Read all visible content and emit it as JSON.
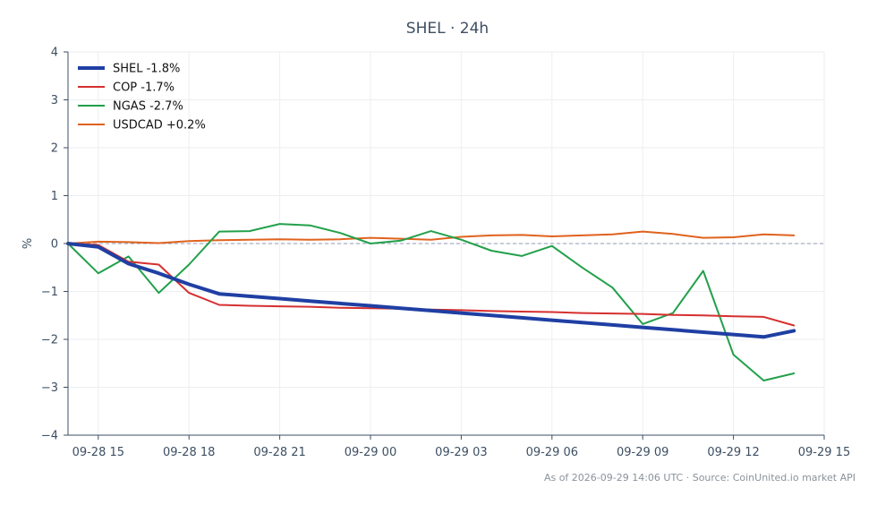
{
  "chart_data": {
    "type": "line",
    "title": "SHEL · 24h",
    "xlabel": "",
    "ylabel": "%",
    "ylim": [
      -4,
      4
    ],
    "yticks": [
      "4",
      "3",
      "2",
      "1",
      "0",
      "−1",
      "−2",
      "−3",
      "−4"
    ],
    "xlim": [
      "09-28 14:00",
      "09-29 15:00"
    ],
    "xticks": [
      "09-28 15",
      "09-28 18",
      "09-28 21",
      "09-29 00",
      "09-29 03",
      "09-29 06",
      "09-29 09",
      "09-29 12",
      "09-29 15"
    ],
    "grid": true,
    "zero_line": true,
    "legend_position": "top-left",
    "x": [
      "09-28 14:00",
      "09-28 15:00",
      "09-28 16:00",
      "09-28 17:00",
      "09-28 18:00",
      "09-28 19:00",
      "09-28 20:00",
      "09-28 21:00",
      "09-28 22:00",
      "09-28 23:00",
      "09-29 00:00",
      "09-29 01:00",
      "09-29 02:00",
      "09-29 03:00",
      "09-29 04:00",
      "09-29 05:00",
      "09-29 06:00",
      "09-29 07:00",
      "09-29 08:00",
      "09-29 09:00",
      "09-29 10:00",
      "09-29 11:00",
      "09-29 12:00",
      "09-29 13:00",
      "09-29 14:00"
    ],
    "series": [
      {
        "name": "SHEL -1.8%",
        "color": "#1f3fa3",
        "width": 4,
        "values": [
          0,
          -0.07,
          -0.42,
          -0.62,
          -0.85,
          -1.05,
          -1.1,
          -1.15,
          -1.2,
          -1.25,
          -1.3,
          -1.35,
          -1.4,
          -1.45,
          -1.5,
          -1.55,
          -1.6,
          -1.65,
          -1.7,
          -1.75,
          -1.8,
          -1.85,
          -1.9,
          -1.95,
          -1.82
        ]
      },
      {
        "name": "COP -1.7%",
        "color": "#d62f2f",
        "width": 2,
        "values": [
          0,
          -0.03,
          -0.38,
          -0.44,
          -1.03,
          -1.28,
          -1.3,
          -1.31,
          -1.32,
          -1.34,
          -1.35,
          -1.36,
          -1.38,
          -1.39,
          -1.41,
          -1.42,
          -1.43,
          -1.45,
          -1.46,
          -1.47,
          -1.49,
          -1.5,
          -1.52,
          -1.53,
          -1.71
        ]
      },
      {
        "name": "NGAS -2.7%",
        "color": "#22a04a",
        "width": 2,
        "values": [
          0,
          -0.62,
          -0.27,
          -1.03,
          -0.44,
          0.25,
          0.26,
          0.41,
          0.38,
          0.22,
          0.0,
          0.06,
          0.26,
          0.08,
          -0.15,
          -0.26,
          -0.05,
          -0.5,
          -0.92,
          -1.68,
          -1.45,
          -0.57,
          -2.32,
          -2.86,
          -2.71
        ]
      },
      {
        "name": "USDCAD +0.2%",
        "color": "#e0621f",
        "width": 2,
        "values": [
          0,
          0.04,
          0.03,
          0.01,
          0.05,
          0.07,
          0.08,
          0.09,
          0.08,
          0.09,
          0.12,
          0.1,
          0.08,
          0.14,
          0.17,
          0.18,
          0.15,
          0.17,
          0.19,
          0.25,
          0.2,
          0.12,
          0.13,
          0.19,
          0.17
        ]
      }
    ],
    "footer": "As of 2026-09-29 14:06 UTC · Source: CoinUnited.io market API"
  }
}
